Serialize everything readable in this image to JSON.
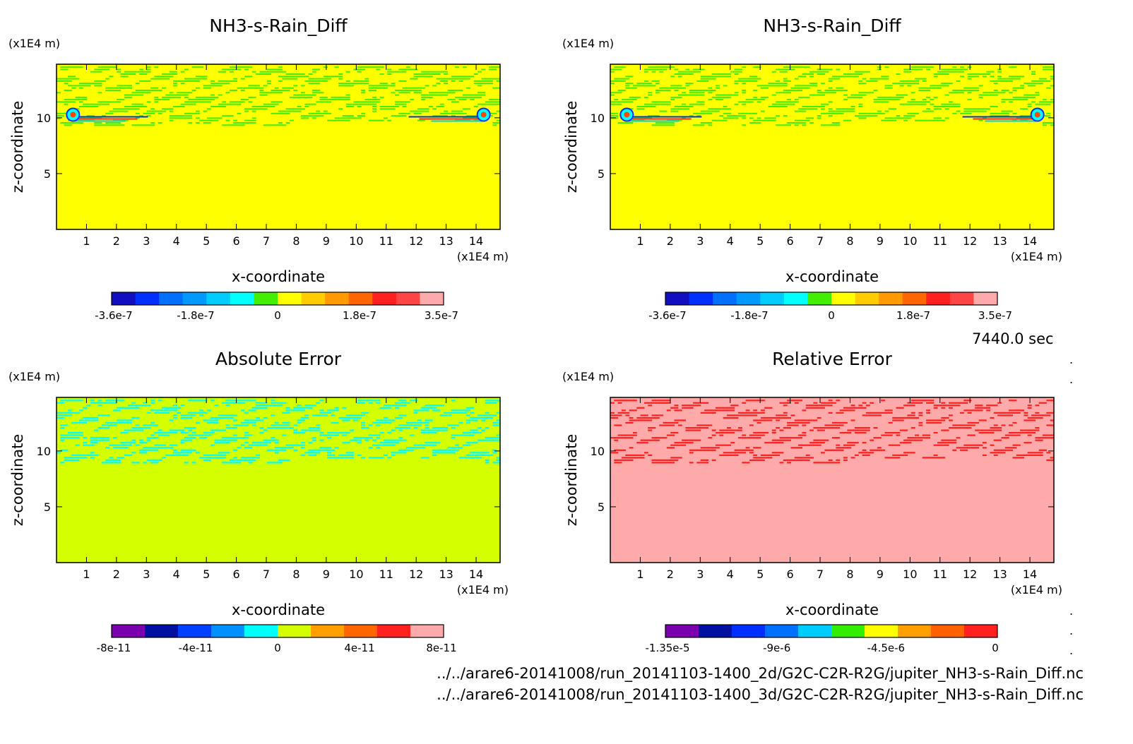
{
  "colors": {
    "yellow": "#ffff00",
    "green": "#44ee00",
    "cyan": "#00ffff",
    "lime": "#d4ff00",
    "salmon": "#ffaaaa",
    "red": "#ff2020"
  },
  "chart_data": [
    {
      "type": "heatmap",
      "title": "NH3-s-Rain_Diff",
      "xlabel": "x-coordinate",
      "ylabel": "z-coordinate",
      "xunit": "(x1E4 m)",
      "yunit": "(x1E4 m)",
      "xticks": [
        "1",
        "2",
        "3",
        "4",
        "5",
        "6",
        "7",
        "8",
        "9",
        "10",
        "11",
        "12",
        "13",
        "14"
      ],
      "yticks": [
        "5",
        "10"
      ],
      "xlim": [
        0,
        14.8
      ],
      "ylim": [
        0,
        14.8
      ],
      "field": {
        "background": "yellow",
        "pattern": "green",
        "layer_z": [
          9.2,
          14.6
        ],
        "anomaly_z": [
          9.4,
          10.4
        ]
      },
      "colorbar": {
        "colors": [
          "#1010c0",
          "#0030ff",
          "#0070ff",
          "#0099ff",
          "#00ccff",
          "#00ffff",
          "#44ee00",
          "#ffff00",
          "#ffcc00",
          "#ff9900",
          "#ff6600",
          "#ff2020",
          "#ff4444",
          "#ffaaaa"
        ],
        "ticks": [
          "-3.6e-7",
          "-1.8e-7",
          "0",
          "1.8e-7",
          "3.5e-7"
        ]
      }
    },
    {
      "type": "heatmap",
      "title": "NH3-s-Rain_Diff",
      "xlabel": "x-coordinate",
      "ylabel": "z-coordinate",
      "xunit": "(x1E4 m)",
      "yunit": "(x1E4 m)",
      "xticks": [
        "1",
        "2",
        "3",
        "4",
        "5",
        "6",
        "7",
        "8",
        "9",
        "10",
        "11",
        "12",
        "13",
        "14"
      ],
      "yticks": [
        "5",
        "10"
      ],
      "xlim": [
        0,
        14.8
      ],
      "ylim": [
        0,
        14.8
      ],
      "field": {
        "background": "yellow",
        "pattern": "green",
        "layer_z": [
          9.2,
          14.6
        ],
        "anomaly_z": [
          9.4,
          10.4
        ]
      },
      "colorbar": {
        "colors": [
          "#1010c0",
          "#0030ff",
          "#0070ff",
          "#0099ff",
          "#00ccff",
          "#00ffff",
          "#44ee00",
          "#ffff00",
          "#ffcc00",
          "#ff9900",
          "#ff6600",
          "#ff2020",
          "#ff4444",
          "#ffaaaa"
        ],
        "ticks": [
          "-3.6e-7",
          "-1.8e-7",
          "0",
          "1.8e-7",
          "3.5e-7"
        ]
      }
    },
    {
      "type": "heatmap",
      "title": "Absolute Error",
      "xlabel": "x-coordinate",
      "ylabel": "z-coordinate",
      "xunit": "(x1E4 m)",
      "yunit": "(x1E4 m)",
      "xticks": [
        "1",
        "2",
        "3",
        "4",
        "5",
        "6",
        "7",
        "8",
        "9",
        "10",
        "11",
        "12",
        "13",
        "14"
      ],
      "yticks": [
        "5",
        "10"
      ],
      "xlim": [
        0,
        14.8
      ],
      "ylim": [
        0,
        14.8
      ],
      "field": {
        "background": "lime",
        "pattern": "cyan",
        "layer_z": [
          8.8,
          14.6
        ],
        "anomaly_z": null
      },
      "colorbar": {
        "colors": [
          "#7a00b0",
          "#0010a0",
          "#0040ff",
          "#0090ff",
          "#00ffff",
          "#d4ff00",
          "#ffa000",
          "#ff6600",
          "#ff2020",
          "#ffaaaa"
        ],
        "ticks": [
          "-8e-11",
          "-4e-11",
          "0",
          "4e-11",
          "8e-11"
        ]
      }
    },
    {
      "type": "heatmap",
      "title": "Relative Error",
      "xlabel": "x-coordinate",
      "ylabel": "z-coordinate",
      "xunit": "(x1E4 m)",
      "yunit": "(x1E4 m)",
      "xticks": [
        "1",
        "2",
        "3",
        "4",
        "5",
        "6",
        "7",
        "8",
        "9",
        "10",
        "11",
        "12",
        "13",
        "14"
      ],
      "yticks": [
        "5",
        "10"
      ],
      "xlim": [
        0,
        14.8
      ],
      "ylim": [
        0,
        14.8
      ],
      "field": {
        "background": "salmon",
        "pattern": "red",
        "layer_z": [
          8.8,
          14.6
        ],
        "anomaly_z": null
      },
      "colorbar": {
        "colors": [
          "#7a00b0",
          "#0010a0",
          "#0030ff",
          "#0070ff",
          "#00ccff",
          "#33ee00",
          "#ffff00",
          "#ffa000",
          "#ff6000",
          "#ff2020"
        ],
        "ticks": [
          "-1.35e-5",
          "-9e-6",
          "-4.5e-6",
          "0"
        ]
      }
    }
  ],
  "time_label": "7440.0 sec",
  "file_paths": [
    "../../arare6-20141008/run_20141103-1400_2d/G2C-C2R-R2G/jupiter_NH3-s-Rain_Diff.nc",
    "../../arare6-20141008/run_20141103-1400_3d/G2C-C2R-R2G/jupiter_NH3-s-Rain_Diff.nc"
  ]
}
